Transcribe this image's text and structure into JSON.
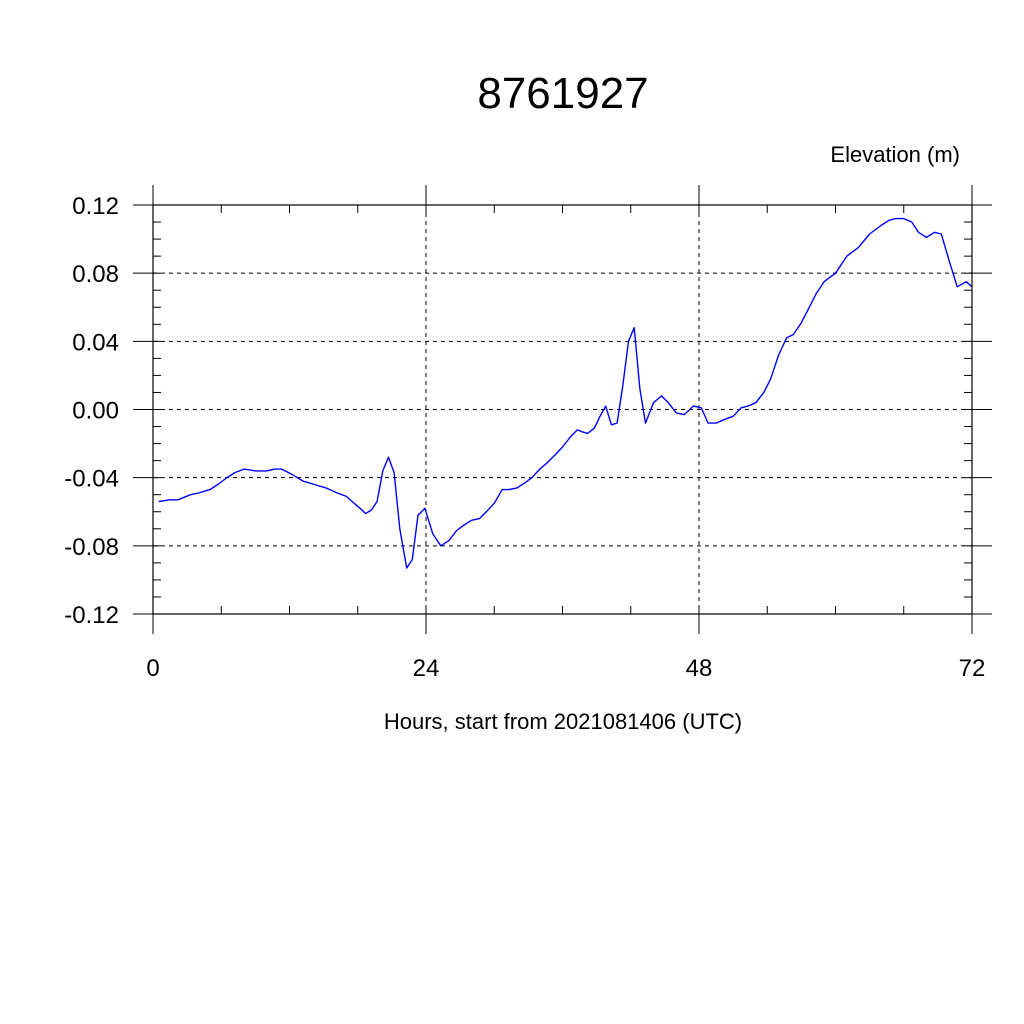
{
  "chart_data": {
    "type": "line",
    "title": "8761927",
    "ylabel": "Elevation (m)",
    "xlabel": "Hours, start from 2021081406 (UTC)",
    "xlim": [
      0,
      72
    ],
    "ylim": [
      -0.12,
      0.12
    ],
    "xticks": [
      0,
      24,
      48,
      72
    ],
    "xtick_labels": [
      "0",
      "24",
      "48",
      "72"
    ],
    "yticks": [
      0.12,
      0.08,
      0.04,
      0.0,
      -0.04,
      -0.08,
      -0.12
    ],
    "ytick_labels": [
      "0.12",
      "0.08",
      "0.04",
      "0.00",
      "-0.04",
      "-0.08",
      "-0.12"
    ],
    "grid": "dashed at major ticks",
    "line_color": "#0000ff",
    "series": [
      {
        "x": [
          0.5,
          1.5,
          2.2,
          3.3,
          4.0,
          5.0,
          5.7,
          6.5,
          7.2,
          8.0,
          9.0,
          10.0,
          10.7,
          11.3,
          12.2,
          13.2,
          14.2,
          15.2,
          16.2,
          17.0,
          17.5,
          18.2,
          18.7,
          19.2,
          19.7,
          20.2,
          20.7,
          21.2,
          21.7,
          22.3,
          22.8,
          23.3,
          23.9,
          24.6,
          25.3,
          26.0,
          26.7,
          27.3,
          28.0,
          28.7,
          29.3,
          30.0,
          30.7,
          31.3,
          32.0,
          32.7,
          33.3,
          34.0,
          34.7,
          35.3,
          36.0,
          36.7,
          37.3,
          37.7,
          38.2,
          38.8,
          39.3,
          39.8,
          40.3,
          40.8,
          41.3,
          41.8,
          42.3,
          42.8,
          43.3,
          44.0,
          44.7,
          45.3,
          46.0,
          46.7,
          47.5,
          48.2,
          48.8,
          49.5,
          50.2,
          51.0,
          51.7,
          52.3,
          53.0,
          53.7,
          54.3,
          55.0,
          55.7,
          56.3,
          57.0,
          57.7,
          58.3,
          59.0,
          60.0,
          61.0,
          62.0,
          63.0,
          64.0,
          64.7,
          65.3,
          66.0,
          66.7,
          67.3,
          68.0,
          68.7,
          69.3,
          70.0,
          70.7,
          71.5,
          72.0
        ],
        "y": [
          -0.054,
          -0.053,
          -0.053,
          -0.05,
          -0.049,
          -0.047,
          -0.044,
          -0.04,
          -0.037,
          -0.035,
          -0.036,
          -0.036,
          -0.035,
          -0.035,
          -0.038,
          -0.042,
          -0.044,
          -0.046,
          -0.049,
          -0.051,
          -0.054,
          -0.058,
          -0.061,
          -0.059,
          -0.054,
          -0.036,
          -0.028,
          -0.037,
          -0.07,
          -0.093,
          -0.088,
          -0.062,
          -0.058,
          -0.073,
          -0.08,
          -0.077,
          -0.071,
          -0.068,
          -0.065,
          -0.064,
          -0.06,
          -0.055,
          -0.047,
          -0.047,
          -0.046,
          -0.043,
          -0.04,
          -0.035,
          -0.031,
          -0.027,
          -0.022,
          -0.016,
          -0.012,
          -0.013,
          -0.014,
          -0.011,
          -0.004,
          0.002,
          -0.009,
          -0.008,
          0.014,
          0.04,
          0.048,
          0.012,
          -0.008,
          0.004,
          0.008,
          0.004,
          -0.002,
          -0.003,
          0.002,
          0.001,
          -0.008,
          -0.008,
          -0.006,
          -0.004,
          0.001,
          0.002,
          0.004,
          0.01,
          0.018,
          0.032,
          0.042,
          0.044,
          0.051,
          0.06,
          0.068,
          0.075,
          0.08,
          0.09,
          0.095,
          0.103,
          0.108,
          0.111,
          0.112,
          0.112,
          0.11,
          0.104,
          0.101,
          0.104,
          0.103,
          0.087,
          0.072,
          0.075,
          0.072
        ]
      }
    ]
  }
}
